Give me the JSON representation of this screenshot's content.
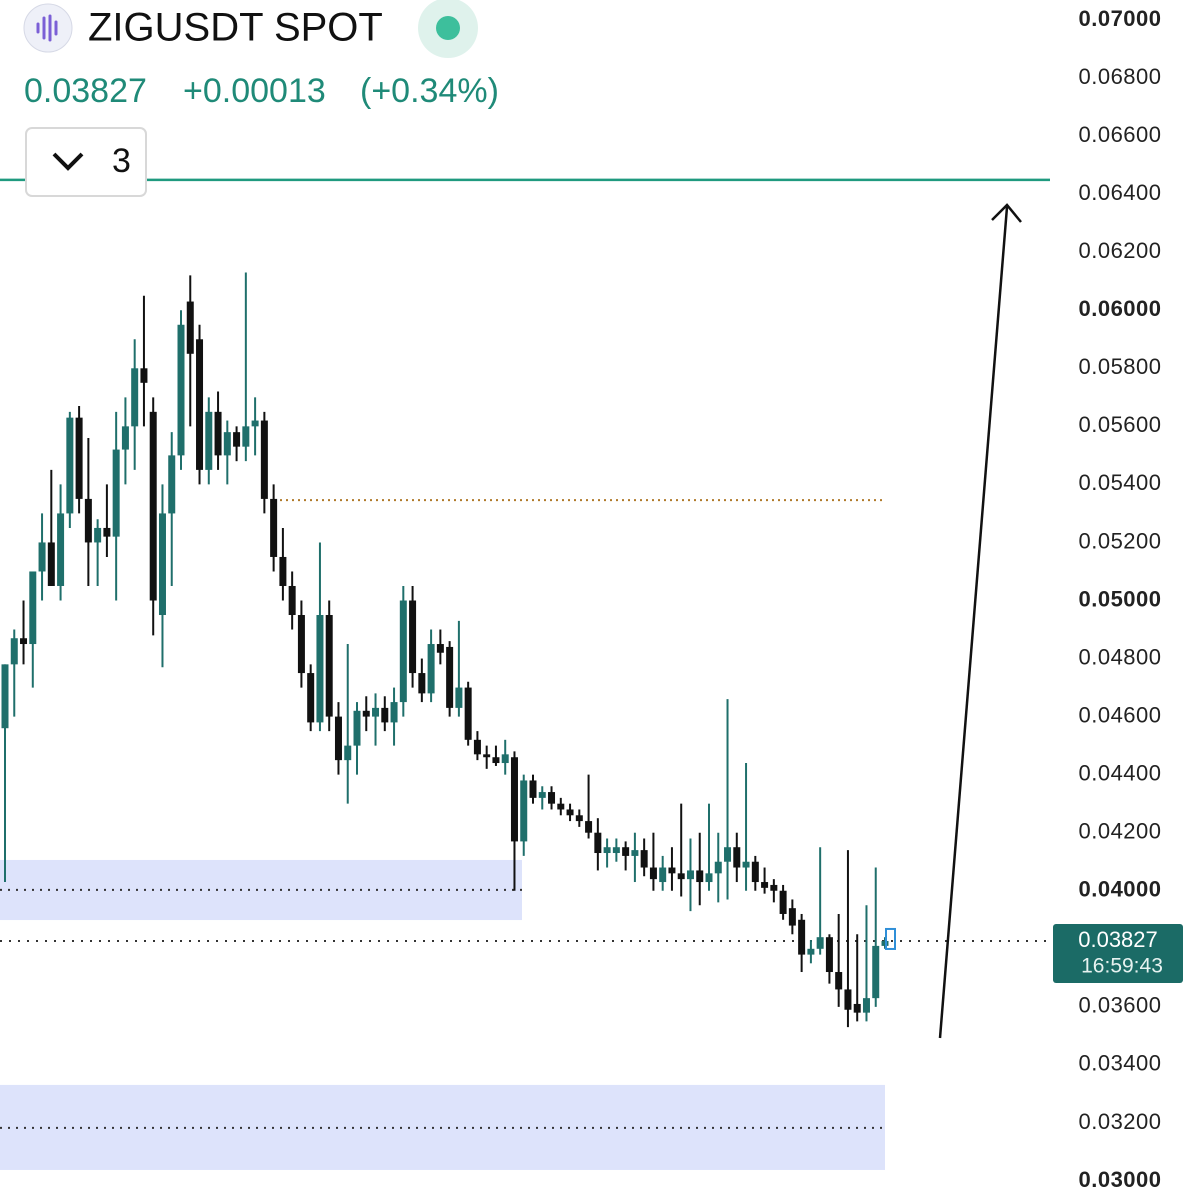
{
  "header": {
    "symbol": "ZIGUSDT SPOT",
    "price": "0.03827",
    "change": "+0.00013",
    "change_pct": "(+0.34%)",
    "indicator_count": "3"
  },
  "chart_data": {
    "type": "candlestick",
    "colors": {
      "up": "#1f6f6b",
      "down": "#111111",
      "target": "#1f9a7f",
      "resistance": "#b07a2a",
      "zone": "#dde3fb",
      "last": "#1b6b66"
    },
    "ylim": [
      0.03,
      0.07
    ],
    "yticks": [
      {
        "value": 0.07,
        "label": "0.07000"
      },
      {
        "value": 0.068,
        "label": "0.06800"
      },
      {
        "value": 0.066,
        "label": "0.06600"
      },
      {
        "value": 0.064,
        "label": "0.06400"
      },
      {
        "value": 0.062,
        "label": "0.06200"
      },
      {
        "value": 0.06,
        "label": "0.06000"
      },
      {
        "value": 0.058,
        "label": "0.05800"
      },
      {
        "value": 0.056,
        "label": "0.05600"
      },
      {
        "value": 0.054,
        "label": "0.05400"
      },
      {
        "value": 0.052,
        "label": "0.05200"
      },
      {
        "value": 0.05,
        "label": "0.05000"
      },
      {
        "value": 0.048,
        "label": "0.04800"
      },
      {
        "value": 0.046,
        "label": "0.04600"
      },
      {
        "value": 0.044,
        "label": "0.04400"
      },
      {
        "value": 0.042,
        "label": "0.04200"
      },
      {
        "value": 0.04,
        "label": "0.04000"
      },
      {
        "value": 0.038,
        "label": "0.03800"
      },
      {
        "value": 0.036,
        "label": "0.03600"
      },
      {
        "value": 0.034,
        "label": "0.03400"
      },
      {
        "value": 0.032,
        "label": "0.03200"
      },
      {
        "value": 0.03,
        "label": "0.03000"
      }
    ],
    "open": [
      0.0456,
      0.0478,
      0.0487,
      0.0485,
      0.051,
      0.052,
      0.0505,
      0.053,
      0.0563,
      0.0535,
      0.052,
      0.0525,
      0.0522,
      0.0552,
      0.056,
      0.058,
      0.0565,
      0.0495,
      0.053,
      0.055,
      0.0603,
      0.059,
      0.0545,
      0.0565,
      0.055,
      0.0558,
      0.0553,
      0.056,
      0.0562,
      0.0535,
      0.0515,
      0.0505,
      0.0495,
      0.0475,
      0.0458,
      0.0495,
      0.046,
      0.0445,
      0.045,
      0.0462,
      0.046,
      0.0463,
      0.0458,
      0.0465,
      0.05,
      0.0475,
      0.0468,
      0.0485,
      0.0484,
      0.0463,
      0.047,
      0.0452,
      0.0447,
      0.0446,
      0.0444,
      0.0446,
      0.0417,
      0.0438,
      0.0432,
      0.0434,
      0.043,
      0.0428,
      0.0426,
      0.0424,
      0.042,
      0.0413,
      0.0413,
      0.0415,
      0.0412,
      0.0414,
      0.0408,
      0.0403,
      0.0408,
      0.0406,
      0.0404,
      0.0407,
      0.0403,
      0.0406,
      0.041,
      0.0415,
      0.0408,
      0.041,
      0.0403,
      0.0402,
      0.04,
      0.0394,
      0.039,
      0.0378,
      0.038,
      0.0384,
      0.0372,
      0.0366,
      0.0361,
      0.0358,
      0.0363,
      0.0381
    ],
    "high": [
      0.0478,
      0.049,
      0.05,
      0.051,
      0.053,
      0.0545,
      0.054,
      0.0565,
      0.0567,
      0.0556,
      0.0528,
      0.054,
      0.0565,
      0.057,
      0.059,
      0.0605,
      0.057,
      0.054,
      0.0558,
      0.06,
      0.0612,
      0.0595,
      0.057,
      0.0572,
      0.0562,
      0.056,
      0.0613,
      0.057,
      0.0565,
      0.054,
      0.0525,
      0.051,
      0.05,
      0.0478,
      0.052,
      0.05,
      0.0465,
      0.0485,
      0.0465,
      0.0467,
      0.0468,
      0.0467,
      0.047,
      0.0505,
      0.0505,
      0.048,
      0.049,
      0.049,
      0.0486,
      0.0493,
      0.0472,
      0.0455,
      0.045,
      0.045,
      0.0452,
      0.0448,
      0.044,
      0.044,
      0.0436,
      0.0436,
      0.0432,
      0.043,
      0.0428,
      0.044,
      0.0425,
      0.0418,
      0.0418,
      0.0417,
      0.042,
      0.0418,
      0.042,
      0.0412,
      0.0415,
      0.043,
      0.0418,
      0.042,
      0.043,
      0.042,
      0.0466,
      0.042,
      0.0444,
      0.0412,
      0.0408,
      0.0404,
      0.0402,
      0.0397,
      0.0392,
      0.0383,
      0.0415,
      0.0385,
      0.0392,
      0.0414,
      0.0385,
      0.0395,
      0.0408,
      0.0384
    ],
    "low": [
      0.0403,
      0.046,
      0.0478,
      0.047,
      0.05,
      0.0505,
      0.05,
      0.0525,
      0.053,
      0.0505,
      0.0505,
      0.0515,
      0.05,
      0.054,
      0.0545,
      0.056,
      0.0488,
      0.0477,
      0.0505,
      0.0545,
      0.056,
      0.054,
      0.054,
      0.0545,
      0.054,
      0.0548,
      0.0548,
      0.055,
      0.053,
      0.051,
      0.05,
      0.049,
      0.047,
      0.0455,
      0.0455,
      0.0455,
      0.044,
      0.043,
      0.044,
      0.0455,
      0.045,
      0.0455,
      0.045,
      0.046,
      0.047,
      0.0465,
      0.0465,
      0.0478,
      0.046,
      0.046,
      0.045,
      0.0445,
      0.0442,
      0.0443,
      0.044,
      0.04,
      0.0412,
      0.043,
      0.0428,
      0.0428,
      0.0426,
      0.0424,
      0.0422,
      0.0418,
      0.0407,
      0.0408,
      0.041,
      0.0407,
      0.0403,
      0.0405,
      0.04,
      0.04,
      0.04,
      0.0398,
      0.0393,
      0.0395,
      0.04,
      0.0396,
      0.0397,
      0.0403,
      0.04,
      0.04,
      0.0399,
      0.0396,
      0.039,
      0.0385,
      0.0372,
      0.0375,
      0.0378,
      0.0368,
      0.036,
      0.0353,
      0.0355,
      0.0355,
      0.036,
      0.038
    ],
    "close": [
      0.0478,
      0.0487,
      0.0485,
      0.051,
      0.052,
      0.0505,
      0.053,
      0.0563,
      0.0535,
      0.052,
      0.0525,
      0.0522,
      0.0552,
      0.056,
      0.058,
      0.0575,
      0.05,
      0.053,
      0.055,
      0.0595,
      0.0585,
      0.0545,
      0.0565,
      0.055,
      0.0558,
      0.0553,
      0.056,
      0.0562,
      0.0535,
      0.0515,
      0.0505,
      0.0495,
      0.0475,
      0.0458,
      0.0495,
      0.046,
      0.0445,
      0.045,
      0.0462,
      0.046,
      0.0463,
      0.0458,
      0.0465,
      0.05,
      0.0475,
      0.0468,
      0.0485,
      0.0482,
      0.0463,
      0.047,
      0.0452,
      0.0447,
      0.0446,
      0.0444,
      0.0447,
      0.0417,
      0.0438,
      0.0432,
      0.0434,
      0.043,
      0.0428,
      0.0426,
      0.0424,
      0.042,
      0.0413,
      0.0415,
      0.0415,
      0.0412,
      0.0414,
      0.0408,
      0.0404,
      0.0408,
      0.0406,
      0.0404,
      0.0407,
      0.0403,
      0.0406,
      0.041,
      0.0415,
      0.0408,
      0.041,
      0.0403,
      0.0401,
      0.04,
      0.0392,
      0.0388,
      0.0378,
      0.038,
      0.0384,
      0.0372,
      0.0366,
      0.0359,
      0.0358,
      0.0363,
      0.0381,
      0.03827
    ],
    "last_price": {
      "value": 0.03827,
      "label": "0.03827"
    },
    "countdown": "16:59:43",
    "target_level": 0.06449,
    "resistance_level": 0.05346,
    "zones": [
      {
        "from": 0.03899,
        "to": 0.04106,
        "mid": 0.04003
      },
      {
        "from": 0.03038,
        "to": 0.03331,
        "mid": 0.03183
      }
    ]
  }
}
